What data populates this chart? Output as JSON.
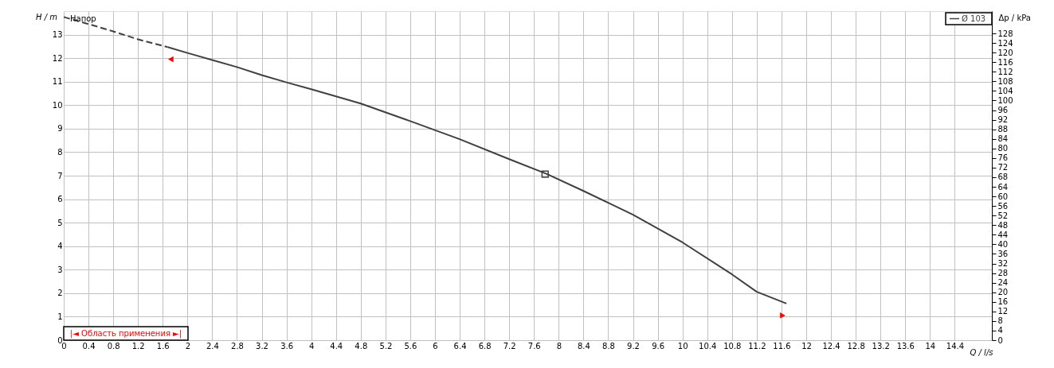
{
  "chart_data": {
    "type": "line",
    "xlabel": "Q / l/s",
    "ylabel": "H / m",
    "y2label": "Δp / kPa",
    "annotations": [
      "Напор"
    ],
    "xlim": [
      0,
      15
    ],
    "xticks": [
      0,
      0.4,
      0.8,
      1.2,
      1.6,
      2,
      2.4,
      2.8,
      3.2,
      3.6,
      4,
      4.4,
      4.8,
      5.2,
      5.6,
      6,
      6.4,
      6.8,
      7.2,
      7.6,
      8,
      8.4,
      8.8,
      9.2,
      9.6,
      10,
      10.4,
      10.8,
      11.2,
      11.6,
      12,
      12.4,
      12.8,
      13.2,
      13.6,
      14,
      14.4
    ],
    "ylim": [
      0,
      14
    ],
    "yticks": [
      0,
      1,
      2,
      3,
      4,
      5,
      6,
      7,
      8,
      9,
      10,
      11,
      12,
      13
    ],
    "y2lim": [
      0,
      137.3
    ],
    "y2ticks": [
      0,
      4,
      8,
      12,
      16,
      20,
      24,
      28,
      32,
      36,
      40,
      44,
      48,
      52,
      56,
      60,
      64,
      68,
      72,
      76,
      80,
      84,
      88,
      92,
      96,
      100,
      104,
      108,
      112,
      116,
      120,
      124,
      128
    ],
    "grid": true,
    "legend": "top right",
    "series": [
      {
        "line_style": "dashed",
        "color": "#404040",
        "x": [
          0,
          0.4,
          0.8,
          1.2,
          1.68
        ],
        "values": [
          13.75,
          13.45,
          13.14,
          12.8,
          12.47
        ]
      },
      {
        "name": "Ø 103",
        "line_style": "solid",
        "color": "#404040",
        "x": [
          1.68,
          2,
          2.4,
          2.8,
          3.2,
          3.6,
          4,
          4.8,
          5.6,
          6.4,
          7.2,
          7.8,
          8.4,
          9.2,
          10,
          10.8,
          11.2,
          11.68
        ],
        "values": [
          12.47,
          12.22,
          11.92,
          11.62,
          11.28,
          10.97,
          10.68,
          10.07,
          9.32,
          8.55,
          7.7,
          7.08,
          6.35,
          5.34,
          4.16,
          2.8,
          2.06,
          1.56
        ]
      },
      {
        "type": "scatter",
        "marker": "square",
        "color": "#404040",
        "x": [
          7.78
        ],
        "values": [
          7.06
        ]
      },
      {
        "type": "scatter",
        "name": "|◄ Область применения ►|",
        "marker": "triangle",
        "color": "#ff0000",
        "x": [
          1.73,
          11.62
        ],
        "values": [
          11.95,
          1.05
        ]
      }
    ]
  }
}
